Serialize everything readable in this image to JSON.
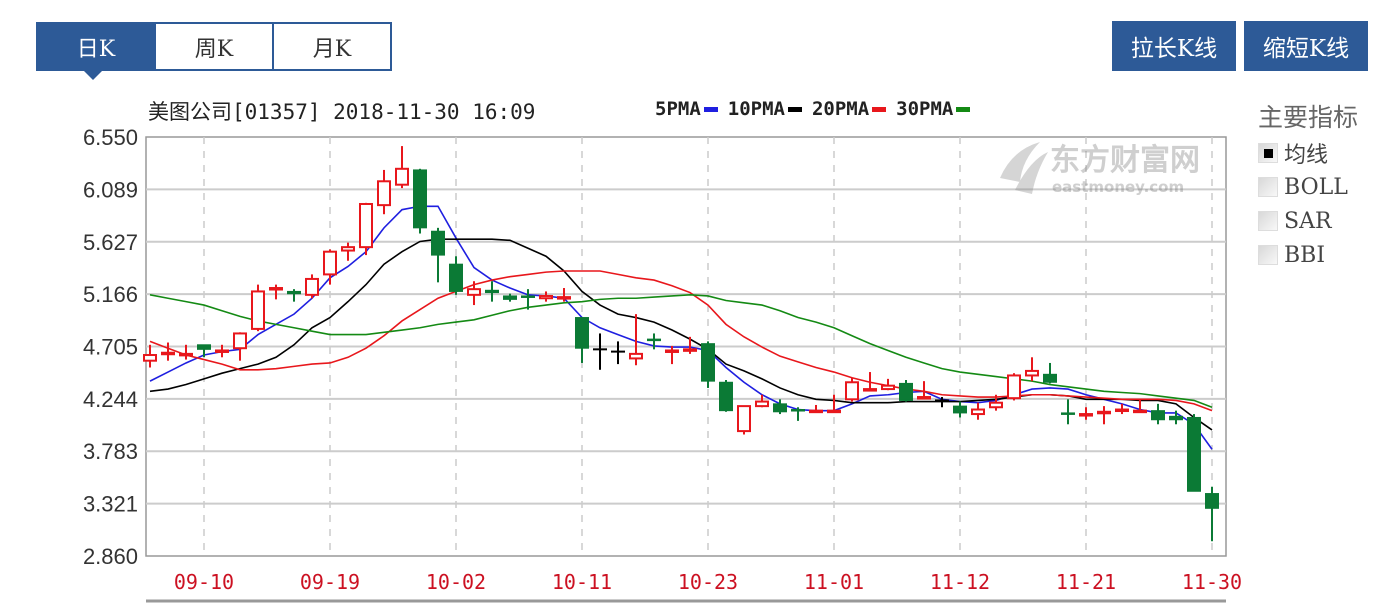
{
  "tabs": [
    {
      "label": "日K",
      "active": true
    },
    {
      "label": "周K",
      "active": false
    },
    {
      "label": "月K",
      "active": false
    }
  ],
  "buttons": {
    "stretch": "拉长K线",
    "shrink": "缩短K线"
  },
  "indicator_panel": {
    "title": "主要指标",
    "options": [
      {
        "label": "均线",
        "checked": true
      },
      {
        "label": "BOLL",
        "checked": false
      },
      {
        "label": "SAR",
        "checked": false
      },
      {
        "label": "BBI",
        "checked": false
      }
    ]
  },
  "watermark": {
    "text": "东方财富网",
    "sub": "eastmoney.com"
  },
  "colors": {
    "accent": "#2d5a97",
    "up": "#e8171c",
    "down": "#0b7a35",
    "flat": "#000000",
    "ma5": "#1f1fe0",
    "ma10": "#000000",
    "ma20": "#e8171c",
    "ma30": "#148a14",
    "date_label": "#cc1122"
  },
  "chart_data": {
    "type": "candlestick",
    "title": "美图公司[01357] 2018-11-30 16:09",
    "legend": [
      {
        "name": "5PMA",
        "color": "#1f1fe0"
      },
      {
        "name": "10PMA",
        "color": "#000000"
      },
      {
        "name": "20PMA",
        "color": "#e8171c"
      },
      {
        "name": "30PMA",
        "color": "#148a14"
      }
    ],
    "legend_placement": "top",
    "ylim": [
      2.86,
      6.55
    ],
    "yticks": [
      "6.550",
      "6.089",
      "5.627",
      "5.166",
      "4.705",
      "4.244",
      "3.783",
      "3.321",
      "2.860"
    ],
    "xticks": [
      "09-10",
      "09-19",
      "10-02",
      "10-11",
      "10-23",
      "11-01",
      "11-12",
      "11-21",
      "11-30"
    ],
    "grid": true,
    "dates": [
      "09-05",
      "09-06",
      "09-07",
      "09-10",
      "09-11",
      "09-12",
      "09-13",
      "09-14",
      "09-17",
      "09-18",
      "09-19",
      "09-20",
      "09-21",
      "09-24",
      "09-26",
      "09-27",
      "09-28",
      "10-02",
      "10-03",
      "10-04",
      "10-05",
      "10-08",
      "10-09",
      "10-10",
      "10-11",
      "10-12",
      "10-15",
      "10-16",
      "10-18",
      "10-19",
      "10-22",
      "10-23",
      "10-24",
      "10-25",
      "10-26",
      "10-29",
      "10-30",
      "10-31",
      "11-01",
      "11-02",
      "11-05",
      "11-06",
      "11-07",
      "11-08",
      "11-09",
      "11-12",
      "11-13",
      "11-14",
      "11-15",
      "11-16",
      "11-19",
      "11-20",
      "11-21",
      "11-22",
      "11-23",
      "11-26",
      "11-27",
      "11-28",
      "11-29",
      "11-30"
    ],
    "ohlc_fields": [
      "open",
      "high",
      "low",
      "close"
    ],
    "ohlc": [
      [
        4.58,
        4.72,
        4.52,
        4.63
      ],
      [
        4.64,
        4.74,
        4.58,
        4.65
      ],
      [
        4.63,
        4.72,
        4.59,
        4.64
      ],
      [
        4.72,
        4.72,
        4.61,
        4.68
      ],
      [
        4.66,
        4.72,
        4.61,
        4.67
      ],
      [
        4.69,
        4.83,
        4.58,
        4.82
      ],
      [
        4.86,
        5.25,
        4.84,
        5.19
      ],
      [
        5.21,
        5.25,
        5.12,
        5.22
      ],
      [
        5.19,
        5.21,
        5.1,
        5.17
      ],
      [
        5.16,
        5.34,
        5.13,
        5.3
      ],
      [
        5.34,
        5.56,
        5.25,
        5.54
      ],
      [
        5.55,
        5.62,
        5.46,
        5.58
      ],
      [
        5.58,
        5.97,
        5.51,
        5.96
      ],
      [
        5.95,
        6.26,
        5.87,
        6.16
      ],
      [
        6.13,
        6.47,
        6.1,
        6.27
      ],
      [
        6.26,
        6.27,
        5.7,
        5.75
      ],
      [
        5.72,
        5.75,
        5.27,
        5.51
      ],
      [
        5.43,
        5.5,
        5.16,
        5.19
      ],
      [
        5.16,
        5.28,
        5.07,
        5.21
      ],
      [
        5.2,
        5.28,
        5.1,
        5.18
      ],
      [
        5.15,
        5.17,
        5.1,
        5.12
      ],
      [
        5.15,
        5.21,
        5.03,
        5.14
      ],
      [
        5.13,
        5.19,
        5.1,
        5.15
      ],
      [
        5.13,
        5.22,
        5.1,
        5.14
      ],
      [
        4.96,
        4.96,
        4.56,
        4.69
      ],
      [
        4.68,
        4.82,
        4.5,
        4.68
      ],
      [
        4.66,
        4.75,
        4.55,
        4.66
      ],
      [
        4.6,
        4.99,
        4.54,
        4.64
      ],
      [
        4.77,
        4.82,
        4.68,
        4.76
      ],
      [
        4.66,
        4.71,
        4.55,
        4.67
      ],
      [
        4.67,
        4.79,
        4.64,
        4.68
      ],
      [
        4.73,
        4.75,
        4.34,
        4.4
      ],
      [
        4.39,
        4.41,
        4.13,
        4.14
      ],
      [
        3.96,
        4.18,
        3.93,
        4.18
      ],
      [
        4.18,
        4.28,
        4.17,
        4.22
      ],
      [
        4.2,
        4.24,
        4.11,
        4.13
      ],
      [
        4.15,
        4.17,
        4.05,
        4.14
      ],
      [
        4.13,
        4.19,
        4.12,
        4.14
      ],
      [
        4.13,
        4.28,
        4.12,
        4.14
      ],
      [
        4.24,
        4.43,
        4.22,
        4.39
      ],
      [
        4.32,
        4.48,
        4.32,
        4.33
      ],
      [
        4.33,
        4.42,
        4.32,
        4.36
      ],
      [
        4.38,
        4.41,
        4.22,
        4.23
      ],
      [
        4.25,
        4.4,
        4.24,
        4.26
      ],
      [
        4.23,
        4.26,
        4.17,
        4.23
      ],
      [
        4.18,
        4.22,
        4.08,
        4.12
      ],
      [
        4.11,
        4.21,
        4.06,
        4.15
      ],
      [
        4.17,
        4.28,
        4.14,
        4.21
      ],
      [
        4.25,
        4.47,
        4.23,
        4.45
      ],
      [
        4.45,
        4.61,
        4.4,
        4.49
      ],
      [
        4.46,
        4.56,
        4.38,
        4.39
      ],
      [
        4.12,
        4.24,
        4.02,
        4.11
      ],
      [
        4.1,
        4.17,
        4.06,
        4.11
      ],
      [
        4.12,
        4.18,
        4.02,
        4.13
      ],
      [
        4.14,
        4.2,
        4.11,
        4.15
      ],
      [
        4.13,
        4.24,
        4.12,
        4.14
      ],
      [
        4.14,
        4.2,
        4.02,
        4.06
      ],
      [
        4.09,
        4.14,
        4.02,
        4.06
      ],
      [
        4.08,
        4.11,
        3.43,
        3.43
      ],
      [
        3.41,
        3.47,
        2.99,
        3.28
      ]
    ],
    "series": [
      {
        "name": "5PMA",
        "values": [
          4.4,
          4.48,
          4.56,
          4.63,
          4.66,
          4.68,
          4.81,
          4.9,
          4.99,
          5.13,
          5.31,
          5.41,
          5.54,
          5.75,
          5.91,
          5.94,
          5.94,
          5.66,
          5.4,
          5.29,
          5.22,
          5.16,
          5.15,
          5.13,
          4.96,
          4.87,
          4.81,
          4.75,
          4.71,
          4.7,
          4.7,
          4.67,
          4.52,
          4.39,
          4.28,
          4.2,
          4.15,
          4.14,
          4.14,
          4.2,
          4.27,
          4.28,
          4.3,
          4.31,
          4.24,
          4.22,
          4.21,
          4.23,
          4.28,
          4.33,
          4.34,
          4.33,
          4.28,
          4.24,
          4.2,
          4.15,
          4.12,
          4.12,
          4.02,
          3.8
        ]
      },
      {
        "name": "10PMA",
        "values": [
          4.31,
          4.33,
          4.37,
          4.42,
          4.47,
          4.51,
          4.55,
          4.61,
          4.72,
          4.87,
          4.96,
          5.1,
          5.25,
          5.43,
          5.54,
          5.63,
          5.65,
          5.65,
          5.65,
          5.65,
          5.64,
          5.57,
          5.5,
          5.37,
          5.19,
          5.07,
          4.99,
          4.96,
          4.92,
          4.85,
          4.77,
          4.68,
          4.55,
          4.49,
          4.42,
          4.34,
          4.28,
          4.24,
          4.23,
          4.21,
          4.21,
          4.21,
          4.22,
          4.22,
          4.22,
          4.22,
          4.23,
          4.24,
          4.26,
          4.28,
          4.28,
          4.27,
          4.24,
          4.24,
          4.24,
          4.23,
          4.23,
          4.2,
          4.08,
          3.97
        ]
      },
      {
        "name": "20PMA",
        "values": [
          4.75,
          4.69,
          4.63,
          4.59,
          4.55,
          4.5,
          4.5,
          4.51,
          4.53,
          4.55,
          4.56,
          4.61,
          4.69,
          4.8,
          4.93,
          5.03,
          5.13,
          5.19,
          5.25,
          5.29,
          5.32,
          5.34,
          5.36,
          5.37,
          5.37,
          5.37,
          5.34,
          5.31,
          5.29,
          5.24,
          5.18,
          5.07,
          4.9,
          4.79,
          4.7,
          4.62,
          4.57,
          4.52,
          4.48,
          4.43,
          4.39,
          4.36,
          4.33,
          4.31,
          4.28,
          4.27,
          4.26,
          4.26,
          4.27,
          4.28,
          4.28,
          4.27,
          4.26,
          4.25,
          4.24,
          4.24,
          4.24,
          4.23,
          4.2,
          4.14
        ]
      },
      {
        "name": "30PMA",
        "values": [
          5.16,
          5.13,
          5.1,
          5.07,
          5.02,
          4.97,
          4.93,
          4.9,
          4.87,
          4.84,
          4.81,
          4.81,
          4.81,
          4.83,
          4.85,
          4.87,
          4.9,
          4.92,
          4.94,
          4.98,
          5.02,
          5.05,
          5.07,
          5.09,
          5.1,
          5.12,
          5.13,
          5.13,
          5.14,
          5.15,
          5.16,
          5.15,
          5.11,
          5.09,
          5.07,
          5.02,
          4.96,
          4.92,
          4.87,
          4.8,
          4.73,
          4.67,
          4.61,
          4.56,
          4.51,
          4.48,
          4.46,
          4.44,
          4.42,
          4.4,
          4.37,
          4.35,
          4.33,
          4.31,
          4.3,
          4.29,
          4.27,
          4.25,
          4.23,
          4.17
        ]
      }
    ]
  }
}
